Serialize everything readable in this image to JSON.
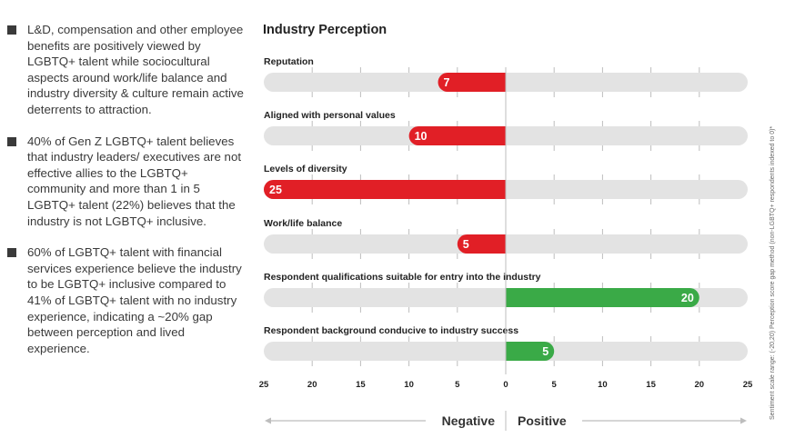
{
  "bullets": [
    "L&D, compensation and other employee benefits are positively viewed by LGBTQ+ talent while sociocultural aspects around work/life balance and industry diversity & culture remain active deterrents to attraction.",
    "40% of Gen Z LGBTQ+ talent believes that industry leaders/ executives are not effective allies to the LGBTQ+ community and more than 1 in 5 LGBTQ+ talent (22%) believes that the industry is not LGBTQ+ inclusive.",
    "60% of LGBTQ+ talent with financial services experience believe the industry to be LGBTQ+ inclusive compared to 41% of LGBTQ+ talent with no industry experience, indicating a ~20% gap between perception and lived experience."
  ],
  "side_note": "Sentiment scale range: (-20,20) Perception score gap method (non-LGBTQ+ respondents indexed to 0)*",
  "colors": {
    "negative": "#e11f26",
    "positive": "#3aaa47",
    "track": "#e3e3e3",
    "tick": "#bdbdbd",
    "text": "#222222"
  },
  "chart_data": {
    "type": "bar",
    "orientation": "horizontal",
    "title": "Industry Perception",
    "categories": [
      "Reputation",
      "Aligned with personal values",
      "Levels of diversity",
      "Work/life balance",
      "Respondent qualifications suitable for entry into the industry",
      "Respondent background conducive to industry success"
    ],
    "values": [
      -7,
      -10,
      -25,
      -5,
      20,
      5
    ],
    "value_labels": [
      "7",
      "10",
      "25",
      "5",
      "20",
      "5"
    ],
    "xlim": [
      -25,
      25
    ],
    "tick_values": [
      -25,
      -20,
      -15,
      -10,
      -5,
      0,
      5,
      10,
      15,
      20,
      25
    ],
    "tick_labels": [
      "25",
      "20",
      "15",
      "10",
      "5",
      "0",
      "5",
      "10",
      "15",
      "20",
      "25"
    ],
    "axis_left_label": "Negative",
    "axis_right_label": "Positive",
    "grid": true
  }
}
